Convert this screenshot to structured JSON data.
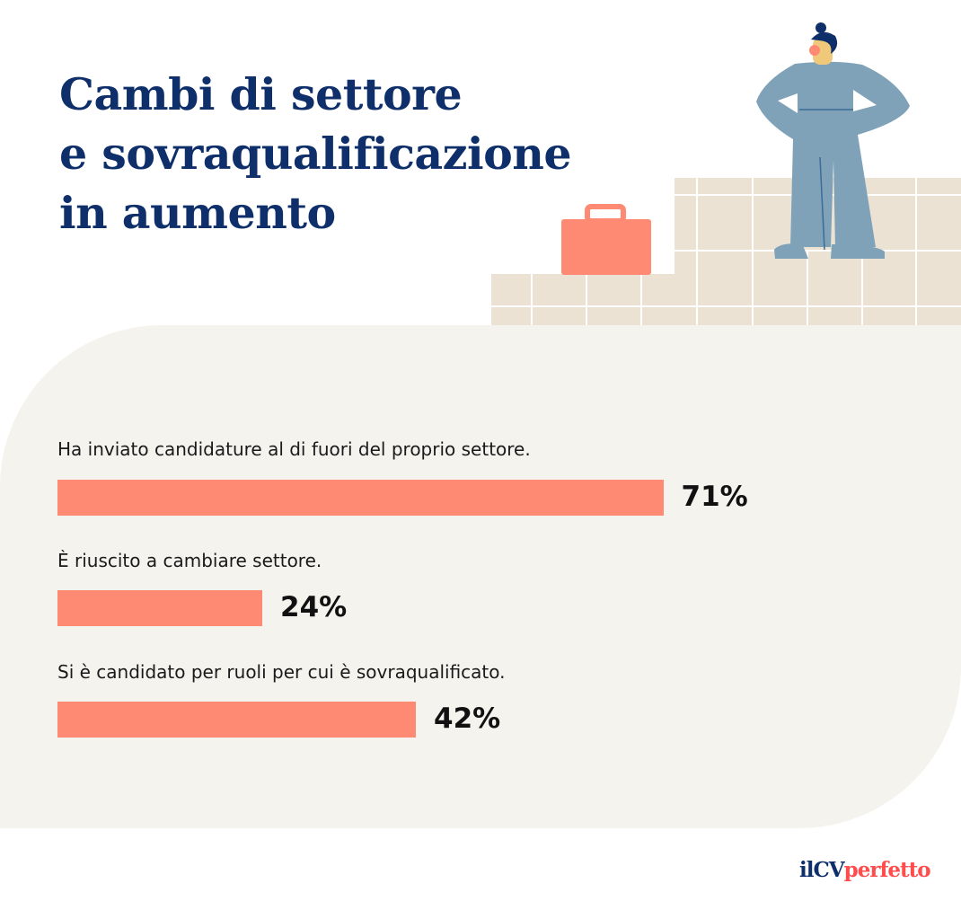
{
  "title_lines": [
    "Cambi di settore",
    "e sovraqualificazione",
    "in aumento"
  ],
  "chart_data": {
    "type": "bar",
    "orientation": "horizontal",
    "categories": [
      "Ha inviato candidature al di fuori del proprio settore.",
      "È riuscito a cambiare settore.",
      "Si è candidato per ruoli per cui è sovraqualificato."
    ],
    "values": [
      71,
      24,
      42
    ],
    "value_labels": [
      "71%",
      "24%",
      "42%"
    ],
    "unit": "%",
    "xlim": [
      0,
      100
    ],
    "grid": false,
    "bar_color": "#ff8a73"
  },
  "logo": {
    "part1": "ilCV",
    "part2": "perfetto"
  },
  "colors": {
    "title": "#0f2f6b",
    "panel": "#f5f3ee",
    "steps": "#ebe2d4",
    "figure": "#7fa2b8",
    "briefcase": "#ff8a73",
    "logo_accent": "#ff4d4d"
  }
}
